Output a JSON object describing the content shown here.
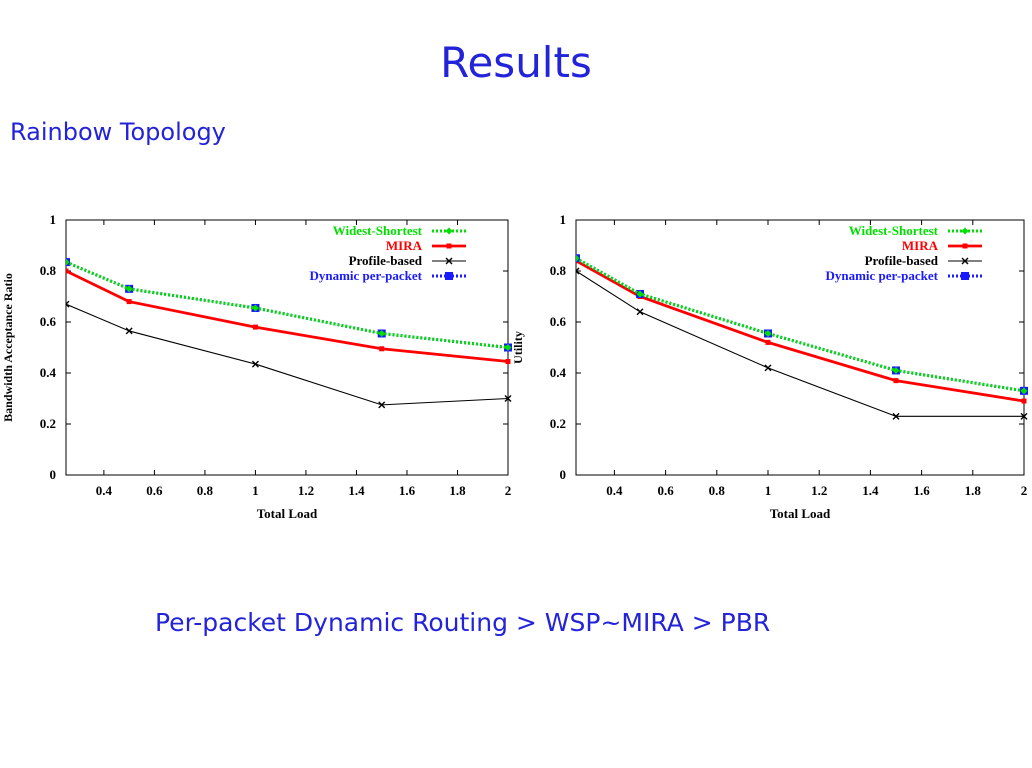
{
  "slide": {
    "title": "Results",
    "subtitle": "Rainbow Topology",
    "conclusion": "Per-packet Dynamic Routing > WSP~MIRA > PBR"
  },
  "chart_data": [
    {
      "type": "line",
      "xlabel": "Total Load",
      "ylabel": "Bandwidth Acceptance Ratio",
      "xlim": [
        0.25,
        2
      ],
      "ylim": [
        0,
        1
      ],
      "x_ticks": [
        "0.4",
        "0.6",
        "0.8",
        "1",
        "1.2",
        "1.4",
        "1.6",
        "1.8",
        "2"
      ],
      "y_ticks": [
        "0",
        "0.2",
        "0.4",
        "0.6",
        "0.8",
        "1"
      ],
      "legend_position": "top-right",
      "grid": false,
      "series": [
        {
          "name": "Widest-Shortest",
          "color": "#00e000",
          "marker": "diamond",
          "dash": "dotted",
          "x": [
            0.25,
            0.5,
            1,
            1.5,
            2
          ],
          "y": [
            0.835,
            0.73,
            0.655,
            0.555,
            0.5
          ]
        },
        {
          "name": "MIRA",
          "color": "#ff0000",
          "marker": "square-small",
          "dash": "solid-thick",
          "x": [
            0.25,
            0.5,
            1,
            1.5,
            2
          ],
          "y": [
            0.8,
            0.68,
            0.58,
            0.495,
            0.445
          ]
        },
        {
          "name": "Profile-based",
          "color": "#000000",
          "marker": "x",
          "dash": "solid-thin",
          "x": [
            0.25,
            0.5,
            1,
            1.5,
            2
          ],
          "y": [
            0.67,
            0.565,
            0.435,
            0.275,
            0.3
          ]
        },
        {
          "name": "Dynamic per-packet",
          "color": "#1a1aff",
          "marker": "square",
          "dash": "dotted",
          "x": [
            0.25,
            0.5,
            1,
            1.5,
            2
          ],
          "y": [
            0.835,
            0.73,
            0.655,
            0.555,
            0.5
          ]
        }
      ]
    },
    {
      "type": "line",
      "xlabel": "Total Load",
      "ylabel": "Utility",
      "xlim": [
        0.25,
        2
      ],
      "ylim": [
        0,
        1
      ],
      "x_ticks": [
        "0.4",
        "0.6",
        "0.8",
        "1",
        "1.2",
        "1.4",
        "1.6",
        "1.8",
        "2"
      ],
      "y_ticks": [
        "0",
        "0.2",
        "0.4",
        "0.6",
        "0.8",
        "1"
      ],
      "legend_position": "top-right",
      "grid": false,
      "series": [
        {
          "name": "Widest-Shortest",
          "color": "#00e000",
          "marker": "diamond",
          "dash": "dotted",
          "x": [
            0.25,
            0.5,
            1,
            1.5,
            2
          ],
          "y": [
            0.85,
            0.71,
            0.555,
            0.41,
            0.33
          ]
        },
        {
          "name": "MIRA",
          "color": "#ff0000",
          "marker": "square-small",
          "dash": "solid-thick",
          "x": [
            0.25,
            0.5,
            1,
            1.5,
            2
          ],
          "y": [
            0.84,
            0.7,
            0.52,
            0.37,
            0.29
          ]
        },
        {
          "name": "Profile-based",
          "color": "#000000",
          "marker": "x",
          "dash": "solid-thin",
          "x": [
            0.25,
            0.5,
            1,
            1.5,
            2
          ],
          "y": [
            0.8,
            0.64,
            0.42,
            0.23,
            0.23
          ]
        },
        {
          "name": "Dynamic per-packet",
          "color": "#1a1aff",
          "marker": "square",
          "dash": "dotted",
          "x": [
            0.25,
            0.5,
            1,
            1.5,
            2
          ],
          "y": [
            0.85,
            0.71,
            0.555,
            0.41,
            0.33
          ]
        }
      ]
    }
  ]
}
